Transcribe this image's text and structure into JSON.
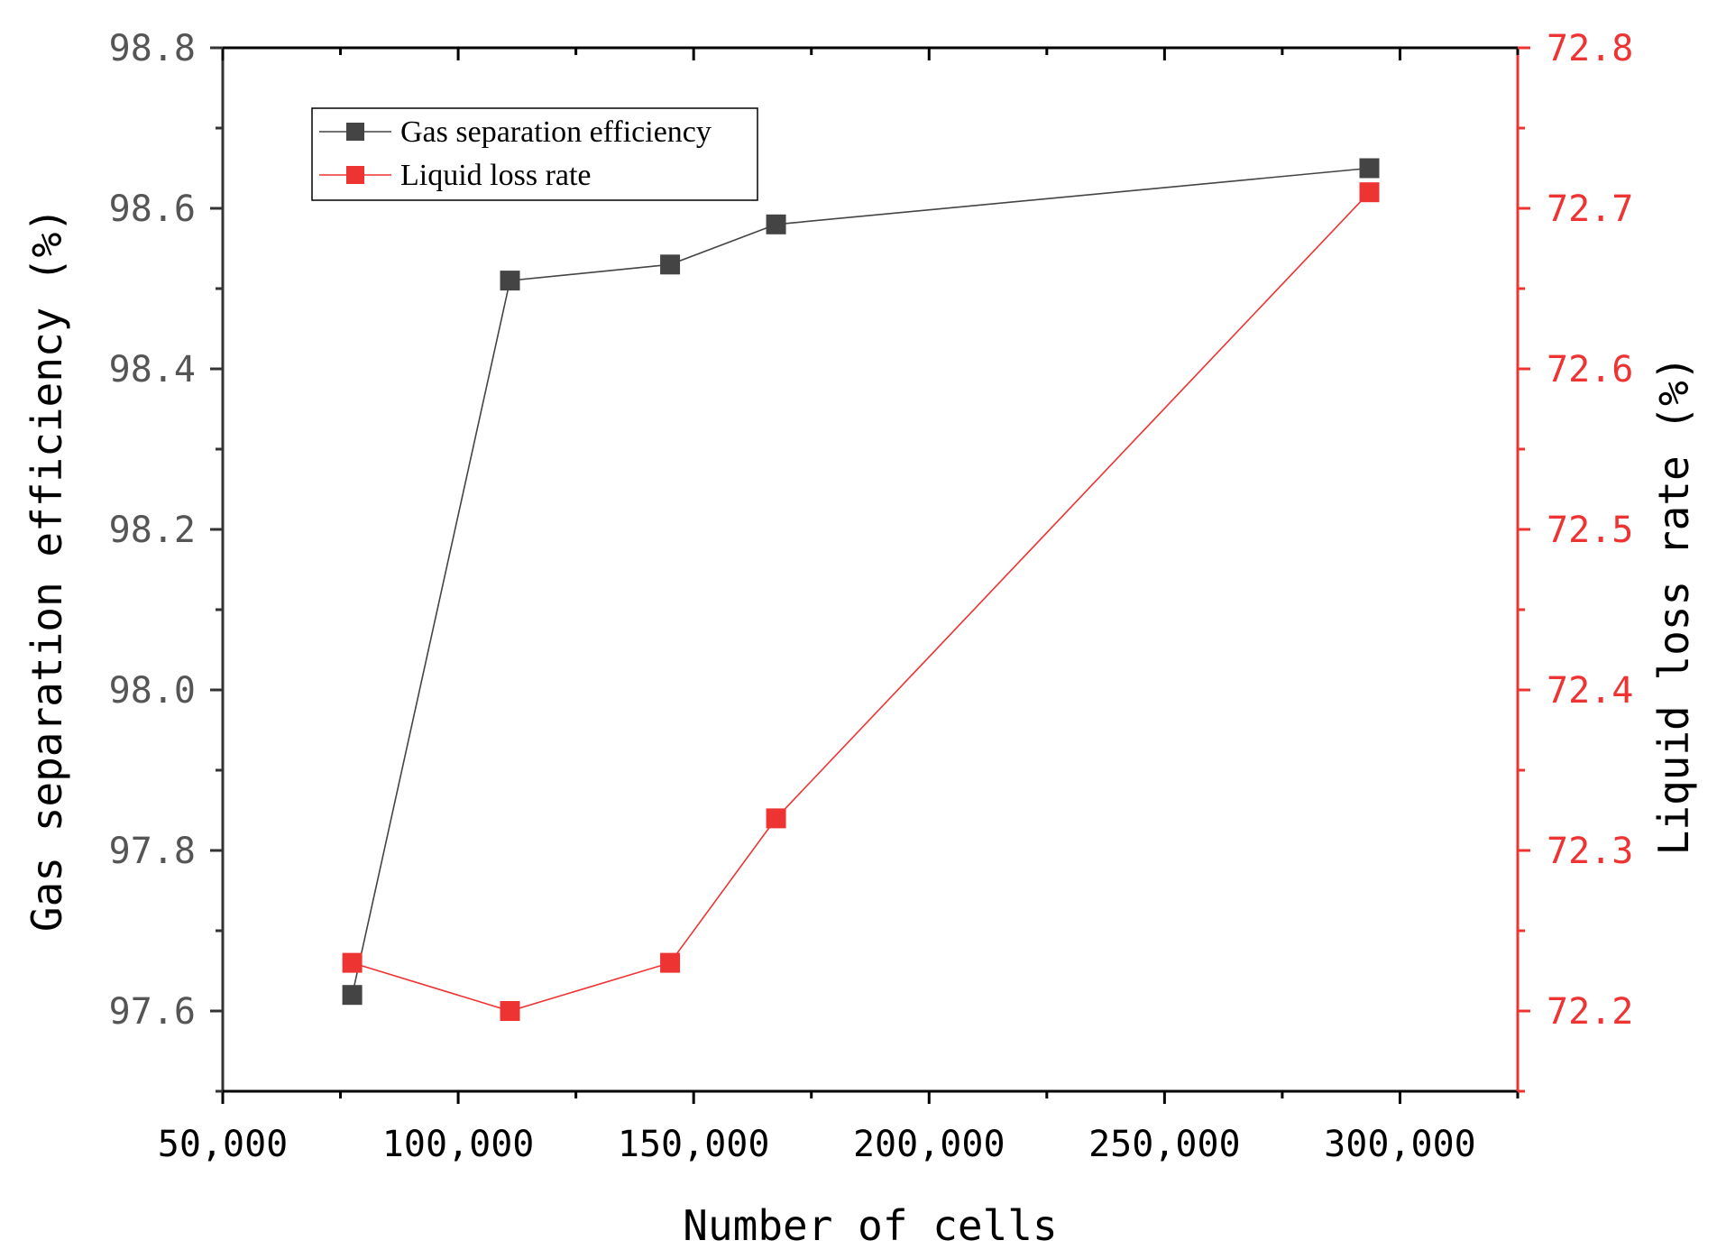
{
  "chart_data": {
    "type": "line",
    "title": "",
    "xlabel": "Number of cells",
    "ylabel_left": "Gas separation efficiency (%)",
    "ylabel_right": "Liquid loss rate (%)",
    "xlim": [
      50000,
      325000
    ],
    "ylim_left": [
      97.5,
      98.8
    ],
    "ylim_right": [
      72.15,
      72.8
    ],
    "x_ticks": [
      50000,
      100000,
      150000,
      200000,
      250000,
      300000
    ],
    "x_tick_labels": [
      "50,000",
      "100,000",
      "150,000",
      "200,000",
      "250,000",
      "300,000"
    ],
    "y_left_ticks": [
      97.6,
      97.8,
      98.0,
      98.2,
      98.4,
      98.6,
      98.8
    ],
    "y_left_tick_labels": [
      "97.6",
      "97.8",
      "98.0",
      "98.2",
      "98.4",
      "98.6",
      "98.8"
    ],
    "y_right_ticks": [
      72.2,
      72.3,
      72.4,
      72.5,
      72.6,
      72.7,
      72.8
    ],
    "y_right_tick_labels": [
      "72.2",
      "72.3",
      "72.4",
      "72.5",
      "72.6",
      "72.7",
      "72.8"
    ],
    "legend_position": "top-left",
    "grid": false,
    "series": [
      {
        "name": "Gas separation efficiency",
        "axis": "left",
        "color": "#444444",
        "marker": "square",
        "x": [
          77500,
          111000,
          145000,
          167500,
          293500
        ],
        "values": [
          97.62,
          98.51,
          98.53,
          98.58,
          98.65
        ]
      },
      {
        "name": "Liquid loss rate",
        "axis": "right",
        "color": "#ee3333",
        "marker": "square",
        "x": [
          77500,
          111000,
          145000,
          167500,
          293500
        ],
        "values": [
          72.23,
          72.2,
          72.23,
          72.32,
          72.71
        ]
      }
    ]
  }
}
